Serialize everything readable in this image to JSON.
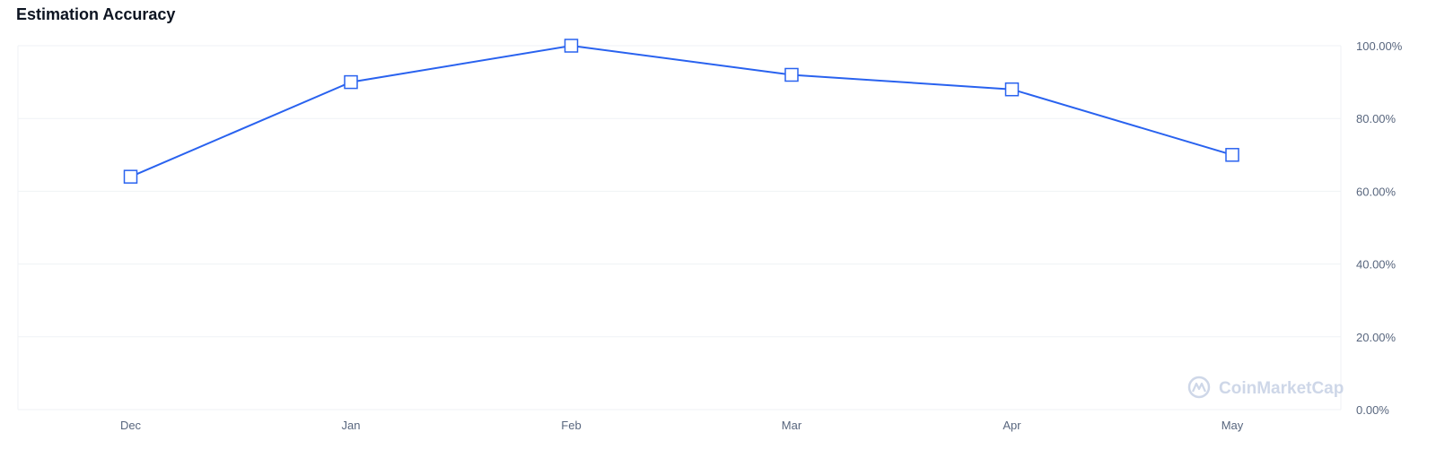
{
  "chart_data": {
    "type": "line",
    "title": "Estimation Accuracy",
    "categories": [
      "Dec",
      "Jan",
      "Feb",
      "Mar",
      "Apr",
      "May"
    ],
    "series": [
      {
        "values": [
          64,
          90,
          100,
          92,
          88,
          70
        ],
        "color": "#2962ef"
      }
    ],
    "ylim": [
      0,
      100
    ],
    "y_ticks": [
      0,
      20,
      40,
      60,
      80,
      100
    ],
    "y_tick_labels": [
      "0.00%",
      "20.00%",
      "40.00%",
      "60.00%",
      "80.00%",
      "100.00%"
    ],
    "y_axis_position": "right",
    "grid": true,
    "marker": "square"
  },
  "watermark": {
    "text": "CoinMarketCap"
  }
}
